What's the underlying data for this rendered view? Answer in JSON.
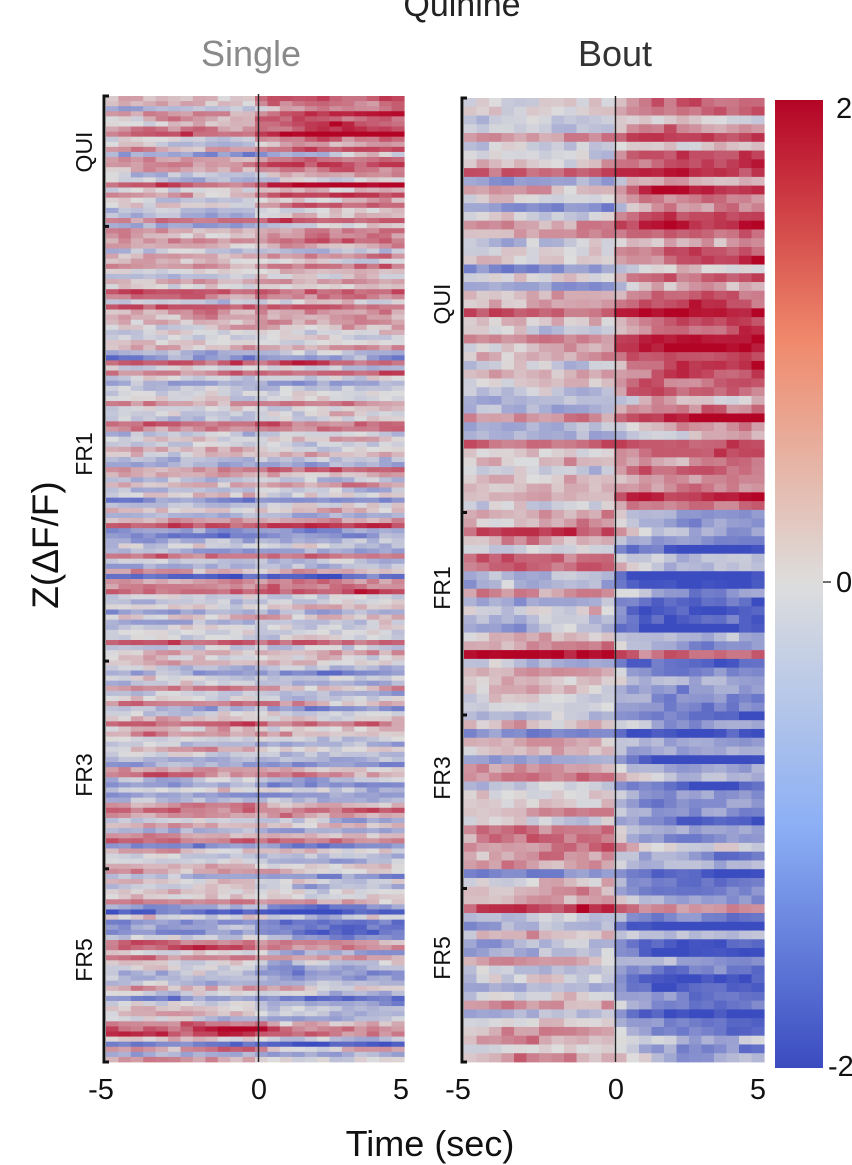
{
  "chart_data": {
    "type": "heatmap",
    "title": "Quinine",
    "ylabel": "Z(ΔF/F)",
    "xlabel": "Time (sec)",
    "colorbar": {
      "ticks": [
        {
          "value": 2,
          "label": "2"
        },
        {
          "value": 0,
          "label": "0"
        },
        {
          "value": -2,
          "label": "-2"
        }
      ],
      "range": [
        -2,
        2
      ],
      "colormap": "coolwarm",
      "colors": [
        "#3b4cc0",
        "#dddddd",
        "#b40426"
      ]
    },
    "x_ticks": [
      {
        "value": -5,
        "label": "-5"
      },
      {
        "value": 0,
        "label": "0"
      },
      {
        "value": 5,
        "label": "5"
      }
    ],
    "x_range": [
      -5,
      5
    ],
    "panels": [
      {
        "name": "Single",
        "groups": [
          {
            "label": "QUI",
            "frac": [
              0,
              0.135
            ]
          },
          {
            "label": "FR1",
            "frac": [
              0.135,
              0.585
            ]
          },
          {
            "label": "FR3",
            "frac": [
              0.585,
              0.8
            ]
          },
          {
            "label": "FR5",
            "frac": [
              0.8,
              1
            ]
          }
        ],
        "rows": 190,
        "response_profile": [
          {
            "group": "QUI",
            "pre_mean": 0.1,
            "post_mean": 0.9
          },
          {
            "group": "FR1",
            "pre_mean": 0.1,
            "post_mean": 0.2
          },
          {
            "group": "FR3",
            "pre_mean": 0.2,
            "post_mean": -0.1
          },
          {
            "group": "FR5",
            "pre_mean": 0.1,
            "post_mean": -0.4
          }
        ]
      },
      {
        "name": "Bout",
        "groups": [
          {
            "label": "QUI",
            "frac": [
              0,
              0.43
            ]
          },
          {
            "label": "FR1",
            "frac": [
              0.43,
              0.64
            ]
          },
          {
            "label": "FR3",
            "frac": [
              0.64,
              0.82
            ]
          },
          {
            "label": "FR5",
            "frac": [
              0.82,
              1
            ]
          }
        ],
        "rows": 110,
        "response_profile": [
          {
            "group": "QUI",
            "pre_mean": 0.2,
            "post_mean": 1.2
          },
          {
            "group": "FR1",
            "pre_mean": 0.4,
            "post_mean": -1.1
          },
          {
            "group": "FR3",
            "pre_mean": 0.3,
            "post_mean": -1.0
          },
          {
            "group": "FR5",
            "pre_mean": 0.5,
            "post_mean": -0.9
          }
        ]
      }
    ]
  }
}
